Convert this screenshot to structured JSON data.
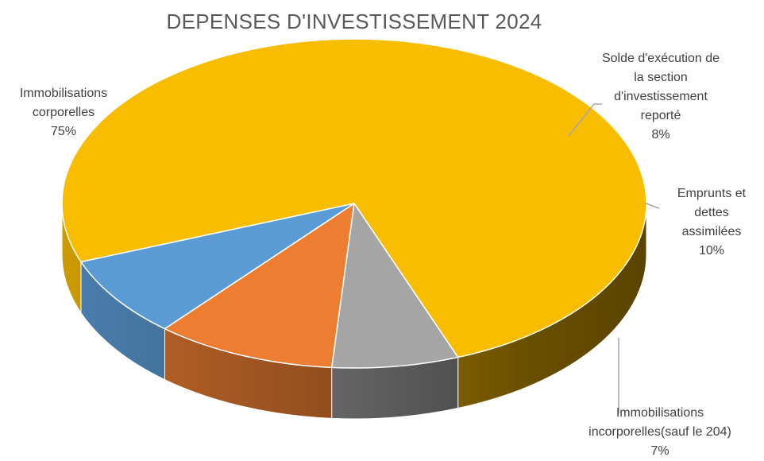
{
  "chart_data": {
    "type": "pie",
    "title": "DEPENSES D'INVESTISSEMENT 2024",
    "three_d": true,
    "slices": [
      {
        "label": "Immobilisations corporelles",
        "value": 75,
        "value_label": "75%",
        "color": "#F9BD00",
        "label_lines": [
          "Immobilisations",
          "corporelles",
          "75%"
        ]
      },
      {
        "label": "Solde d'exécution de la section d'investissement reporté",
        "value": 8,
        "value_label": "8%",
        "color": "#5B9BD5",
        "label_lines": [
          "Solde d'exécution de",
          "la section",
          "d'investissement",
          "reporté",
          "8%"
        ]
      },
      {
        "label": "Emprunts et dettes assimilées",
        "value": 10,
        "value_label": "10%",
        "color": "#ED7D31",
        "label_lines": [
          "Emprunts et",
          "dettes",
          "assimilées",
          "10%"
        ]
      },
      {
        "label": "Immobilisations incorporelles(sauf le 204)",
        "value": 7,
        "value_label": "7%",
        "color": "#A5A5A5",
        "label_lines": [
          "Immobilisations",
          "incorporelles(sauf le 204)",
          "7%"
        ]
      }
    ]
  }
}
